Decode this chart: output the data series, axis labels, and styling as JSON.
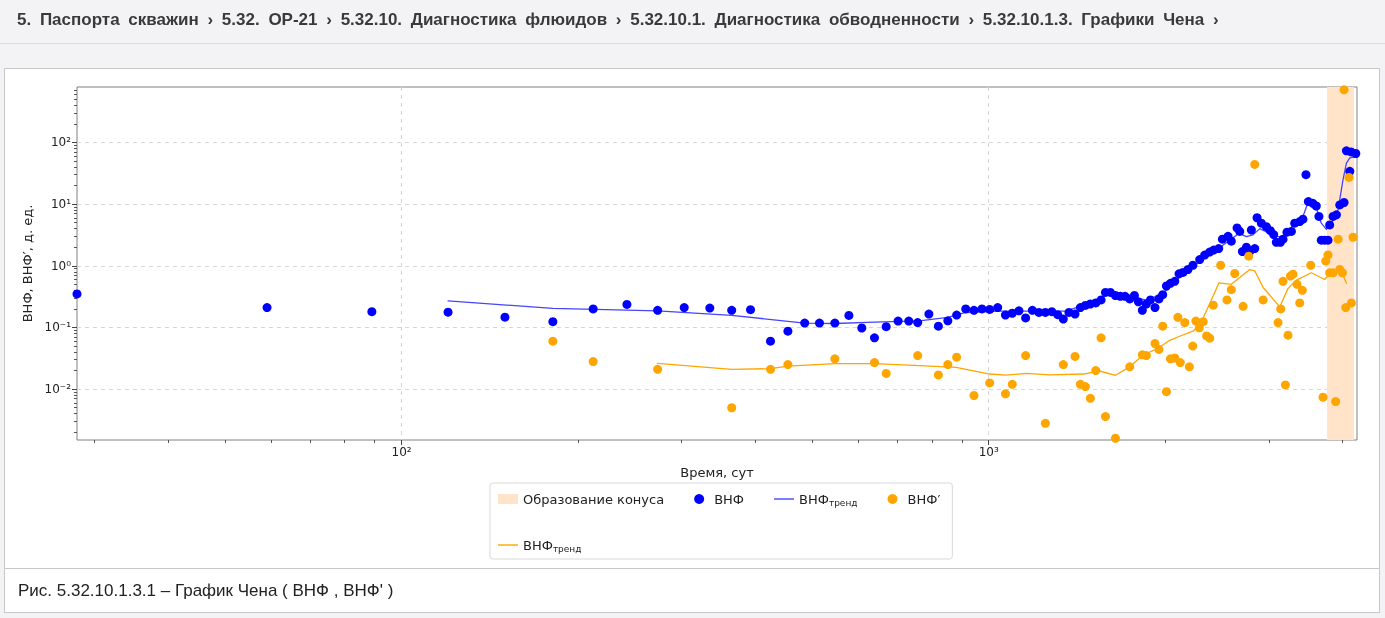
{
  "chart_data": {
    "type": "scatter",
    "annotations": [
      "5. Паспорта скважин › 5.32. OP-21 › 5.32.10. Диагностика флюидов › 5.32.10.1. Диагностика обводненности › 5.32.10.1.3. Графики Чена ›"
    ],
    "title": "Рис. 5.32.10.1.3.1 – График Чена ( ВНФ , ВНФ' )",
    "xlabel": "Время, сут",
    "ylabel": "ВНФ, ВНФ′, д. ед.",
    "log": "xy",
    "grid": true,
    "legend": "bottom",
    "marker": "circle",
    "xlim": [
      28,
      4240
    ],
    "ylim": [
      0.0015,
      790
    ],
    "xticks": [
      {
        "value": 30,
        "label": null
      },
      {
        "value": 40,
        "label": null
      },
      {
        "value": 50,
        "label": null
      },
      {
        "value": 60,
        "label": null
      },
      {
        "value": 70,
        "label": null
      },
      {
        "value": 80,
        "label": null
      },
      {
        "value": 90,
        "label": null
      },
      {
        "value": 100,
        "label": "10²"
      },
      {
        "value": 200,
        "label": null
      },
      {
        "value": 300,
        "label": null
      },
      {
        "value": 400,
        "label": null
      },
      {
        "value": 500,
        "label": null
      },
      {
        "value": 600,
        "label": null
      },
      {
        "value": 700,
        "label": null
      },
      {
        "value": 800,
        "label": null
      },
      {
        "value": 900,
        "label": null
      },
      {
        "value": 1000,
        "label": "10³"
      },
      {
        "value": 2000,
        "label": null
      },
      {
        "value": 3000,
        "label": null
      },
      {
        "value": 4000,
        "label": null
      }
    ],
    "yticks": [
      {
        "value": 0.002,
        "label": null
      },
      {
        "value": 0.003,
        "label": null
      },
      {
        "value": 0.004,
        "label": null
      },
      {
        "value": 0.005,
        "label": null
      },
      {
        "value": 0.006,
        "label": null
      },
      {
        "value": 0.007,
        "label": null
      },
      {
        "value": 0.008,
        "label": null
      },
      {
        "value": 0.009,
        "label": null
      },
      {
        "value": 0.01,
        "label": "10⁻²"
      },
      {
        "value": 0.02,
        "label": null
      },
      {
        "value": 0.03,
        "label": null
      },
      {
        "value": 0.04,
        "label": null
      },
      {
        "value": 0.05,
        "label": null
      },
      {
        "value": 0.06,
        "label": null
      },
      {
        "value": 0.07,
        "label": null
      },
      {
        "value": 0.08,
        "label": null
      },
      {
        "value": 0.09,
        "label": null
      },
      {
        "value": 0.1,
        "label": "10⁻¹"
      },
      {
        "value": 0.2,
        "label": null
      },
      {
        "value": 0.3,
        "label": null
      },
      {
        "value": 0.4,
        "label": null
      },
      {
        "value": 0.5,
        "label": null
      },
      {
        "value": 0.6,
        "label": null
      },
      {
        "value": 0.7,
        "label": null
      },
      {
        "value": 0.8,
        "label": null
      },
      {
        "value": 0.9,
        "label": null
      },
      {
        "value": 1,
        "label": "10⁰"
      },
      {
        "value": 2,
        "label": null
      },
      {
        "value": 3,
        "label": null
      },
      {
        "value": 4,
        "label": null
      },
      {
        "value": 5,
        "label": null
      },
      {
        "value": 6,
        "label": null
      },
      {
        "value": 7,
        "label": null
      },
      {
        "value": 8,
        "label": null
      },
      {
        "value": 9,
        "label": null
      },
      {
        "value": 10,
        "label": "10¹"
      },
      {
        "value": 20,
        "label": null
      },
      {
        "value": 30,
        "label": null
      },
      {
        "value": 40,
        "label": null
      },
      {
        "value": 50,
        "label": null
      },
      {
        "value": 60,
        "label": null
      },
      {
        "value": 70,
        "label": null
      },
      {
        "value": 80,
        "label": null
      },
      {
        "value": 90,
        "label": null
      },
      {
        "value": 100,
        "label": "10²"
      },
      {
        "value": 200,
        "label": null
      },
      {
        "value": 300,
        "label": null
      },
      {
        "value": 400,
        "label": null
      },
      {
        "value": 500,
        "label": null
      },
      {
        "value": 600,
        "label": null
      },
      {
        "value": 700,
        "label": null
      }
    ],
    "bands": [
      {
        "axis": "x",
        "from": 3770,
        "to": 4190,
        "label": "Образование конуса",
        "color": "#ffe4c9"
      }
    ],
    "series": [
      {
        "name": "ВНФ",
        "color": "#0000ff",
        "x": [
          28,
          59,
          89,
          120,
          150,
          181,
          212,
          242,
          273,
          303,
          335,
          365,
          393,
          425,
          455,
          486,
          515,
          547,
          578,
          608,
          639,
          669,
          701,
          731,
          757,
          791,
          821,
          852,
          882,
          914,
          944,
          974,
          1004,
          1036,
          1068,
          1097,
          1126,
          1156,
          1187,
          1218,
          1249,
          1281,
          1311,
          1340,
          1370,
          1403,
          1433,
          1461,
          1490,
          1522,
          1554,
          1581,
          1612,
          1644,
          1676,
          1707,
          1739,
          1771,
          1799,
          1827,
          1856,
          1886,
          1920,
          1950,
          1979,
          2008,
          2040,
          2075,
          2110,
          2143,
          2185,
          2228,
          2288,
          2333,
          2379,
          2417,
          2465,
          2501,
          2557,
          2590,
          2649,
          2677,
          2705,
          2748,
          2784,
          2802,
          2839,
          2865,
          2914,
          2972,
          3019,
          3058,
          3090,
          3140,
          3172,
          3222,
          3278,
          3321,
          3387,
          3430,
          3471,
          3504,
          3566,
          3614,
          3652,
          3686,
          3735,
          3784,
          3809,
          3860,
          3911,
          3963,
          4030,
          4068,
          4122,
          4143,
          4220
        ],
        "values": [
          0.35,
          0.21,
          0.18,
          0.177,
          0.147,
          0.124,
          0.2,
          0.236,
          0.19,
          0.21,
          0.206,
          0.19,
          0.194,
          0.06,
          0.087,
          0.118,
          0.118,
          0.118,
          0.157,
          0.098,
          0.068,
          0.103,
          0.127,
          0.127,
          0.12,
          0.165,
          0.105,
          0.128,
          0.159,
          0.2,
          0.19,
          0.2,
          0.196,
          0.21,
          0.159,
          0.17,
          0.186,
          0.143,
          0.19,
          0.175,
          0.175,
          0.18,
          0.161,
          0.137,
          0.175,
          0.165,
          0.21,
          0.228,
          0.24,
          0.25,
          0.28,
          0.37,
          0.37,
          0.33,
          0.32,
          0.32,
          0.29,
          0.33,
          0.26,
          0.19,
          0.24,
          0.28,
          0.21,
          0.29,
          0.34,
          0.47,
          0.52,
          0.56,
          0.74,
          0.78,
          0.87,
          1.02,
          1.26,
          1.49,
          1.67,
          1.8,
          1.9,
          2.7,
          3.0,
          2.5,
          4.1,
          3.6,
          1.7,
          2.0,
          1.7,
          3.8,
          1.9,
          6.0,
          4.9,
          4.3,
          3.7,
          3.2,
          2.4,
          2.4,
          2.7,
          3.5,
          3.6,
          4.9,
          5.2,
          5.7,
          30,
          11,
          10.3,
          9.3,
          6.3,
          2.6,
          2.6,
          2.6,
          4.6,
          6.3,
          6.7,
          9.7,
          10.6,
          73,
          34,
          70,
          66
        ]
      },
      {
        "name": "ВНФ$_{тренд}$",
        "type": "line",
        "marker": "none",
        "color": "#4545ff",
        "x": [
          120,
          181,
          273,
          365,
          486,
          547,
          639,
          762,
          852,
          914,
          1040,
          1355,
          1466,
          1630,
          1756,
          1867,
          2008,
          2143,
          2250,
          2443,
          2670,
          2748,
          2820,
          2895,
          3090,
          3172,
          3343,
          3430,
          3504,
          3614,
          3686,
          3760,
          3835,
          3937,
          4014,
          4068,
          4122,
          4204
        ],
        "values": [
          0.27,
          0.204,
          0.186,
          0.157,
          0.118,
          0.116,
          0.122,
          0.128,
          0.146,
          0.175,
          0.184,
          0.184,
          0.239,
          0.374,
          0.31,
          0.274,
          0.4,
          0.74,
          1.05,
          1.8,
          3.36,
          2.96,
          3.17,
          4.0,
          2.96,
          2.96,
          5.2,
          6.3,
          11,
          8.7,
          4.9,
          3.9,
          4.9,
          8.1,
          25,
          46,
          56,
          58
        ]
      },
      {
        "name": "ВНФ′",
        "color": "#ffa500",
        "x": [
          181,
          212,
          273,
          365,
          425,
          455,
          547,
          639,
          669,
          757,
          821,
          852,
          882,
          944,
          1004,
          1068,
          1097,
          1156,
          1249,
          1340,
          1403,
          1433,
          1461,
          1490,
          1522,
          1554,
          1581,
          1644,
          1739,
          1827,
          1856,
          1920,
          1950,
          1979,
          2008,
          2040,
          2075,
          2100,
          2120,
          2158,
          2197,
          2226,
          2254,
          2284,
          2320,
          2351,
          2380,
          2413,
          2484,
          2546,
          2590,
          2625,
          2712,
          2773,
          2839,
          2934,
          3111,
          3144,
          3172,
          3202,
          3235,
          3266,
          3299,
          3351,
          3387,
          3422,
          3536,
          3711,
          3751,
          3784,
          3809,
          3860,
          3900,
          3937,
          3963,
          4005,
          4030,
          4057,
          4110,
          4148,
          4175
        ],
        "values": [
          0.06,
          0.028,
          0.021,
          0.005,
          0.021,
          0.025,
          0.031,
          0.027,
          0.018,
          0.035,
          0.017,
          0.025,
          0.033,
          0.0079,
          0.0126,
          0.0084,
          0.012,
          0.035,
          0.0028,
          0.025,
          0.034,
          0.012,
          0.011,
          0.0071,
          0.02,
          0.068,
          0.0036,
          0.0016,
          0.023,
          0.036,
          0.035,
          0.055,
          0.044,
          0.105,
          0.0091,
          0.031,
          0.032,
          0.146,
          0.027,
          0.12,
          0.023,
          0.05,
          0.127,
          0.099,
          0.124,
          0.073,
          0.067,
          0.23,
          1.02,
          0.28,
          0.41,
          0.75,
          0.22,
          1.43,
          44,
          0.28,
          0.12,
          0.2,
          0.56,
          0.0117,
          0.075,
          0.68,
          0.73,
          0.5,
          0.25,
          0.4,
          1.02,
          0.0074,
          1.19,
          1.5,
          0.77,
          0.77,
          0.0063,
          2.7,
          0.87,
          0.77,
          710,
          0.21,
          27,
          0.25,
          2.9
        ]
      },
      {
        "name": "ВНФ$_{тренд}$",
        "type": "line",
        "marker": "none",
        "color": "#ffa500",
        "x": [
          273,
          365,
          425,
          455,
          547,
          639,
          762,
          880,
          1004,
          1070,
          1160,
          1270,
          1450,
          1545,
          1644,
          1739,
          1833,
          1942,
          2035,
          2115,
          2228,
          2288,
          2380,
          2468,
          2590,
          2784,
          2839,
          2934,
          3132,
          3235,
          3343,
          3544,
          3735,
          3835,
          3963,
          4014,
          4068
        ],
        "values": [
          0.0262,
          0.021,
          0.0215,
          0.0237,
          0.0259,
          0.0259,
          0.024,
          0.0226,
          0.0176,
          0.0169,
          0.018,
          0.017,
          0.0176,
          0.0197,
          0.0168,
          0.023,
          0.0357,
          0.046,
          0.062,
          0.072,
          0.087,
          0.109,
          0.245,
          0.53,
          0.5,
          0.87,
          0.83,
          0.445,
          0.216,
          0.43,
          0.585,
          0.77,
          0.6,
          0.8,
          0.85,
          0.7,
          0.52
        ]
      }
    ]
  }
}
